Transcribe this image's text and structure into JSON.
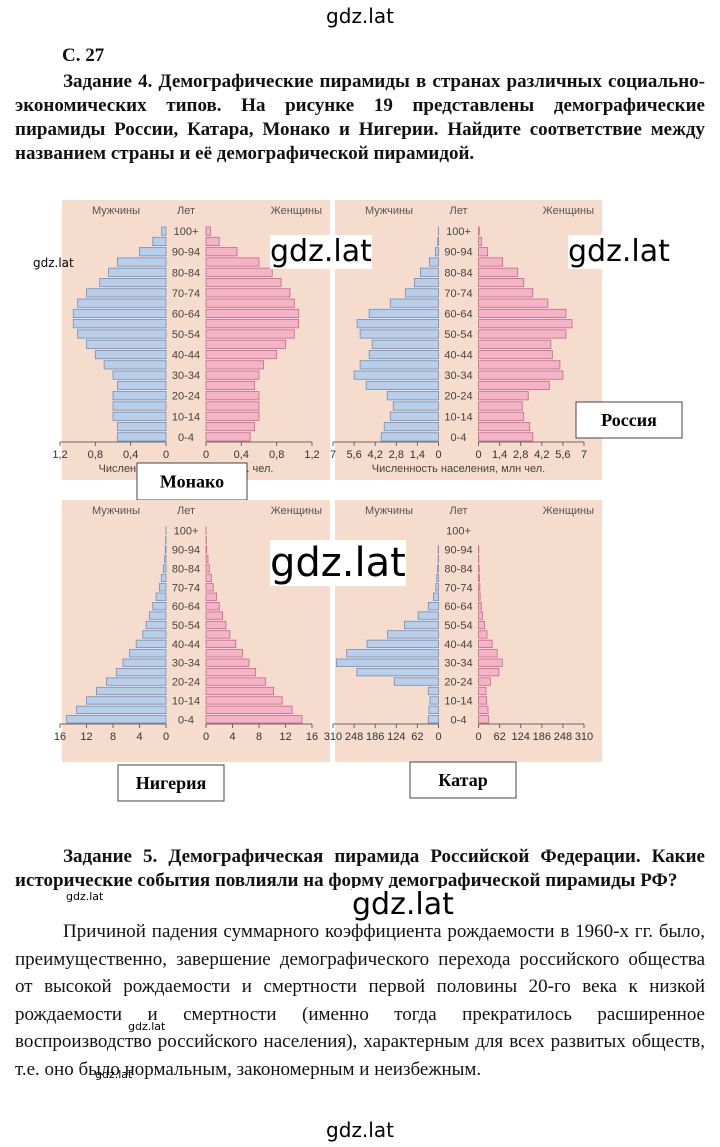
{
  "header": "gdz.lat",
  "page_number": "С. 27",
  "task4": "Задание 4. Демографические пирамиды в странах различных социально-экономических типов. На рисунке 19 представлены демографические пирамиды России, Катара, Монако и Нигерии. Найдите соответствие между названием страны и её демографической пирамидой.",
  "task5": {
    "heading": "Задание 5. Демографическая пирамида Российской Федерации. Какие исторические события повлияли на форму демографической пирамиды РФ?",
    "text": "Причиной падения суммарного коэффициента рождаемости в 1960-х гг. было, преимущественно, завершение демографического перехода российского общества от высокой рождаемости и смертности первой половины 20-го века к низкой рождаемости и смертности (именно тогда прекратилось расширенное воспроизводство российского населения), характерным для всех развитых обществ, т.е. оно было нормальным, закономерным и неизбежным."
  },
  "watermarks": [
    "gdz.lat",
    "gdz.lat",
    "gdz.lat",
    "gdz.lat",
    "gdz.lat",
    "gdz.lat",
    "gdz.lat",
    "gdz.lat"
  ],
  "footer": "gdz.lat",
  "chart_data": [
    {
      "type": "pyramid",
      "country": "Монако",
      "age_label": "Лет",
      "xlabel": "Численность населения, тыс. чел.",
      "categories": [
        "0-4",
        null,
        "10-14",
        null,
        "20-24",
        null,
        "30-34",
        null,
        "40-44",
        null,
        "50-54",
        null,
        "60-64",
        null,
        "70-74",
        null,
        "80-84",
        null,
        "90-94",
        null,
        "100+"
      ],
      "series": [
        {
          "name": "Мужчины",
          "color": "#b9cfe9",
          "values": [
            0.55,
            0.55,
            0.6,
            0.6,
            0.6,
            0.55,
            0.6,
            0.7,
            0.8,
            0.9,
            1.0,
            1.05,
            1.05,
            1.0,
            0.9,
            0.75,
            0.65,
            0.55,
            0.3,
            0.15,
            0.05
          ]
        },
        {
          "name": "Женщины",
          "color": "#f4b3c6",
          "values": [
            0.5,
            0.55,
            0.6,
            0.6,
            0.6,
            0.55,
            0.6,
            0.65,
            0.8,
            0.9,
            1.0,
            1.05,
            1.05,
            1.0,
            0.95,
            0.85,
            0.75,
            0.6,
            0.35,
            0.15,
            0.05
          ]
        }
      ],
      "xlim": [
        0,
        1.2
      ],
      "xticks": [
        {
          "value": 1.2,
          "label": "1,2"
        },
        {
          "value": 0.8,
          "label": "0,8"
        },
        {
          "value": 0.4,
          "label": "0,4"
        },
        0
      ]
    },
    {
      "type": "pyramid",
      "country": "Россия",
      "age_label": "Лет",
      "xlabel": "Численность населения, млн чел.",
      "categories": [
        "0-4",
        null,
        "10-14",
        null,
        "20-24",
        null,
        "30-34",
        null,
        "40-44",
        null,
        "50-54",
        null,
        "60-64",
        null,
        "70-74",
        null,
        "80-84",
        null,
        "90-94",
        null,
        "100+"
      ],
      "series": [
        {
          "name": "Мужчины",
          "color": "#b9cfe9",
          "values": [
            3.8,
            3.6,
            3.2,
            3.0,
            3.4,
            4.8,
            5.6,
            5.2,
            4.6,
            4.4,
            5.2,
            5.4,
            4.6,
            3.2,
            2.2,
            1.6,
            1.2,
            0.6,
            0.2,
            0.05,
            0.01
          ]
        },
        {
          "name": "Женщины",
          "color": "#f4b3c6",
          "values": [
            3.6,
            3.4,
            3.0,
            2.9,
            3.3,
            4.7,
            5.6,
            5.4,
            4.9,
            4.8,
            5.8,
            6.2,
            5.8,
            4.6,
            3.6,
            3.0,
            2.6,
            1.6,
            0.6,
            0.2,
            0.05
          ]
        }
      ],
      "xlim": [
        0,
        7
      ],
      "xticks": [
        7,
        {
          "value": 5.6,
          "label": "5,6"
        },
        {
          "value": 4.2,
          "label": "4,2"
        },
        {
          "value": 2.8,
          "label": "2,8"
        },
        {
          "value": 1.4,
          "label": "1,4"
        },
        0
      ]
    },
    {
      "type": "pyramid",
      "country": "Нигерия",
      "age_label": "Лет",
      "categories": [
        "0-4",
        null,
        "10-14",
        null,
        "20-24",
        null,
        "30-34",
        null,
        "40-44",
        null,
        "50-54",
        null,
        "60-64",
        null,
        "70-74",
        null,
        "80-84",
        null,
        "90-94",
        null,
        "100+"
      ],
      "series": [
        {
          "name": "Мужчины",
          "color": "#b9cfe9",
          "values": [
            15,
            13.5,
            12,
            10.5,
            9,
            7.5,
            6.5,
            5.5,
            4.5,
            3.5,
            3,
            2.5,
            2,
            1.5,
            1,
            0.7,
            0.4,
            0.2,
            0.1,
            0.05,
            0.02
          ]
        },
        {
          "name": "Женщины",
          "color": "#f4b3c6",
          "values": [
            14.5,
            13,
            11.5,
            10.2,
            9,
            7.5,
            6.5,
            5.5,
            4.5,
            3.6,
            3,
            2.5,
            2,
            1.6,
            1.1,
            0.8,
            0.5,
            0.3,
            0.1,
            0.05,
            0.02
          ]
        }
      ],
      "xlim": [
        0,
        16
      ],
      "xticks": [
        16,
        12,
        8,
        4,
        0
      ]
    },
    {
      "type": "pyramid",
      "country": "Катар",
      "age_label": "Лет",
      "categories": [
        "0-4",
        null,
        "10-14",
        null,
        "20-24",
        null,
        "30-34",
        null,
        "40-44",
        null,
        "50-54",
        null,
        "60-64",
        null,
        "70-74",
        null,
        "80-84",
        null,
        "90-94",
        null,
        "100+"
      ],
      "series": [
        {
          "name": "Мужчины",
          "color": "#b9cfe9",
          "values": [
            30,
            28,
            25,
            30,
            130,
            240,
            300,
            270,
            210,
            150,
            100,
            60,
            30,
            15,
            8,
            5,
            3,
            1,
            1,
            0,
            0
          ]
        },
        {
          "name": "Женщины",
          "color": "#f4b3c6",
          "values": [
            30,
            28,
            24,
            22,
            35,
            60,
            70,
            55,
            40,
            25,
            18,
            12,
            8,
            5,
            4,
            3,
            2,
            1,
            1,
            0,
            0
          ]
        }
      ],
      "xlim": [
        0,
        310
      ],
      "xticks": [
        310,
        248,
        186,
        124,
        62,
        0
      ]
    }
  ]
}
